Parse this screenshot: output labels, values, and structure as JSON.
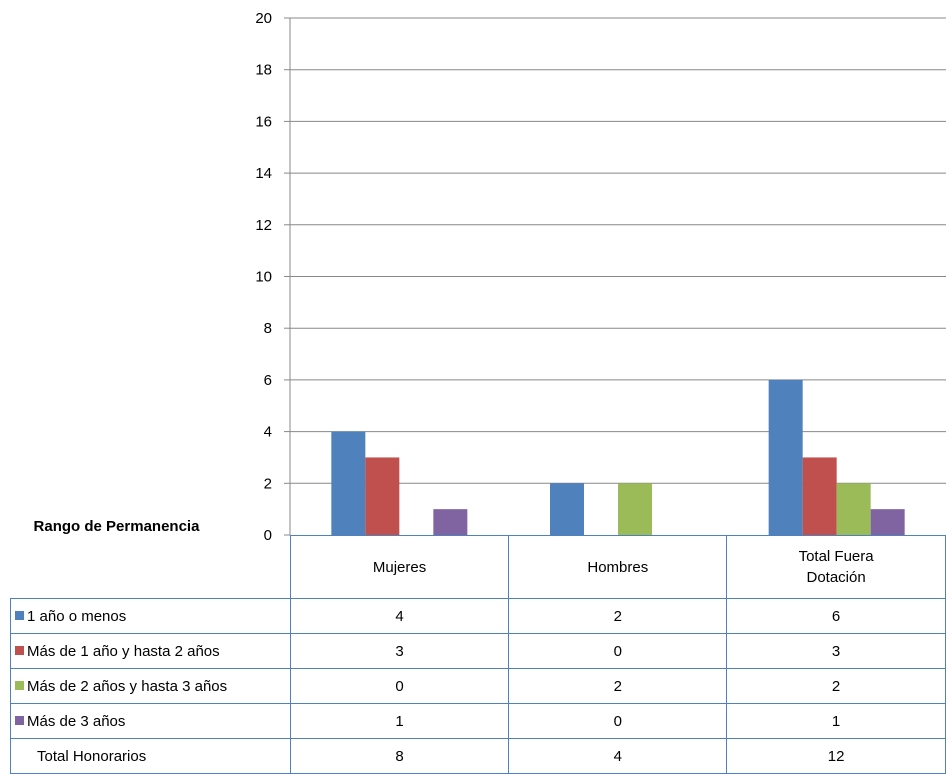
{
  "chart_data": {
    "type": "bar",
    "categories": [
      "Mujeres",
      "Hombres",
      "Total Fuera Dotación"
    ],
    "category_label_lines": [
      [
        "Mujeres"
      ],
      [
        "Hombres"
      ],
      [
        "Total Fuera",
        "Dotación"
      ]
    ],
    "series": [
      {
        "name": "1 año o menos",
        "values": [
          4,
          2,
          6
        ],
        "color": "#4f81bd"
      },
      {
        "name": "Más de 1 año y hasta 2 años",
        "values": [
          3,
          0,
          3
        ],
        "color": "#c0504d"
      },
      {
        "name": "Más de 2 años y hasta 3 años",
        "values": [
          0,
          2,
          2
        ],
        "color": "#9bbb59"
      },
      {
        "name": "Más de 3 años",
        "values": [
          1,
          0,
          1
        ],
        "color": "#8064a2"
      }
    ],
    "ylim": [
      0,
      20
    ],
    "yticks": [
      0,
      2,
      4,
      6,
      8,
      10,
      12,
      14,
      16,
      18,
      20
    ],
    "grid": true,
    "legend": "data-table",
    "table_title": "Rango de Permanencia",
    "total_row": {
      "label": "Total Honorarios",
      "values": [
        8,
        4,
        12
      ]
    }
  }
}
